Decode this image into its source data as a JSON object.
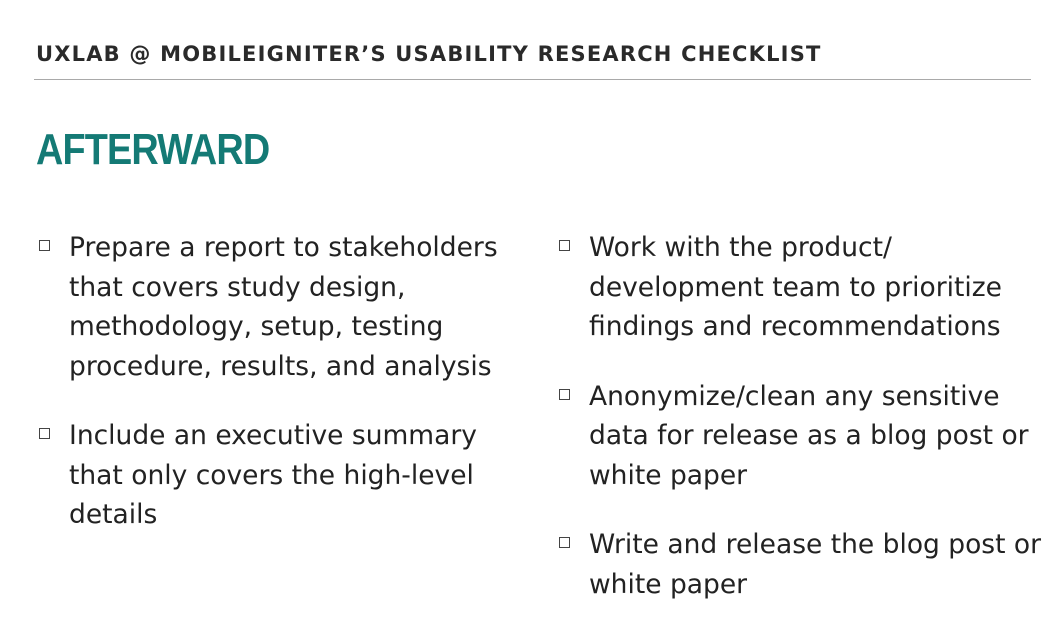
{
  "header": {
    "title": "UXLAB @ MOBILEIGNITER’S USABILITY RESEARCH CHECKLIST"
  },
  "section": {
    "title": "AFTERWARD"
  },
  "columns": {
    "left": [
      {
        "text": "Prepare a report to stakeholders that covers study design, methodology, setup, testing procedure, results, and analysis"
      },
      {
        "text": "Include an executive summary that only covers the high-level details"
      }
    ],
    "right": [
      {
        "text": "Work with the product/ development team to prioritize findings and recommendations"
      },
      {
        "text": "Anonymize/clean any sensitive data for release as a blog post or white paper"
      },
      {
        "text": "Write and release the blog post or white paper"
      }
    ]
  },
  "icons": {
    "checkbox": "empty-checkbox-icon"
  },
  "colors": {
    "accent": "#147a75",
    "text": "#222222",
    "rule": "#a9a9a9"
  }
}
